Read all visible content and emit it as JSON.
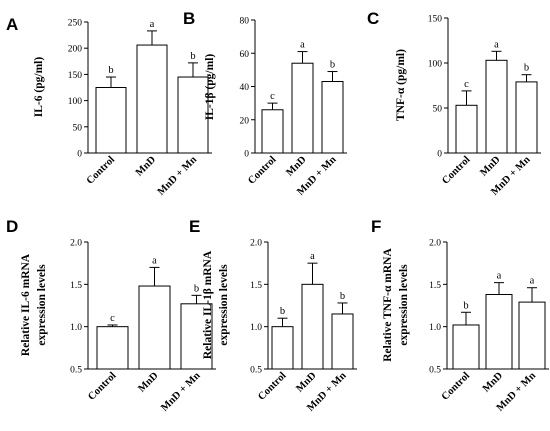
{
  "chart_data": [
    {
      "type": "bar",
      "panel": "A",
      "ylabel": "IL-6 (pg/ml)",
      "categories": [
        "Control",
        "MnD",
        "MnD + Mn"
      ],
      "values": [
        125,
        206,
        145
      ],
      "errors": [
        20,
        27,
        27
      ],
      "significance": [
        "b",
        "a",
        "b"
      ],
      "ylim": [
        0,
        250
      ],
      "yticks": [
        0,
        50,
        100,
        150,
        200,
        250
      ],
      "ytick_labels": [
        "0",
        "50",
        "100",
        "150",
        "200",
        "250"
      ],
      "grid": false,
      "bar_fill": "#ffffff",
      "bar_stroke": "#000000"
    },
    {
      "type": "bar",
      "panel": "B",
      "ylabel": "IL-1β (pg/ml)",
      "categories": [
        "Control",
        "MnD",
        "MnD + Mn"
      ],
      "values": [
        26,
        54,
        43
      ],
      "errors": [
        4,
        7,
        6
      ],
      "significance": [
        "c",
        "a",
        "b"
      ],
      "ylim": [
        0,
        80
      ],
      "yticks": [
        0,
        20,
        40,
        60,
        80
      ],
      "ytick_labels": [
        "0",
        "20",
        "40",
        "60",
        "80"
      ],
      "grid": false,
      "bar_fill": "#ffffff",
      "bar_stroke": "#000000"
    },
    {
      "type": "bar",
      "panel": "C",
      "ylabel": "TNF-α (pg/ml)",
      "categories": [
        "Control",
        "MnD",
        "MnD + Mn"
      ],
      "values": [
        53,
        103,
        79
      ],
      "errors": [
        16,
        10,
        8
      ],
      "significance": [
        "c",
        "a",
        "b"
      ],
      "ylim": [
        0,
        150
      ],
      "yticks": [
        0,
        50,
        100,
        150
      ],
      "ytick_labels": [
        "0",
        "50",
        "100",
        "150"
      ],
      "grid": false,
      "bar_fill": "#ffffff",
      "bar_stroke": "#000000"
    },
    {
      "type": "bar",
      "panel": "D",
      "ylabel": "Relative IL-6 mRNA",
      "ylabel2": "expression levels",
      "categories": [
        "Control",
        "MnD",
        "MnD + Mn"
      ],
      "values": [
        1.0,
        1.48,
        1.27
      ],
      "errors": [
        0.02,
        0.22,
        0.1
      ],
      "significance": [
        "c",
        "a",
        "b"
      ],
      "ylim": [
        0.5,
        2.0
      ],
      "yticks": [
        0.5,
        1.0,
        1.5,
        2.0
      ],
      "ytick_labels": [
        "0.5",
        "1.0",
        "1.5",
        "2.0"
      ],
      "grid": false,
      "bar_fill": "#ffffff",
      "bar_stroke": "#000000"
    },
    {
      "type": "bar",
      "panel": "E",
      "ylabel": "Relative IL-1β mRNA",
      "ylabel2": "expression levels",
      "categories": [
        "Control",
        "MnD",
        "MnD + Mn"
      ],
      "values": [
        1.0,
        1.5,
        1.15
      ],
      "errors": [
        0.1,
        0.25,
        0.13
      ],
      "significance": [
        "b",
        "a",
        "b"
      ],
      "ylim": [
        0.5,
        2.0
      ],
      "yticks": [
        0.5,
        1.0,
        1.5,
        2.0
      ],
      "ytick_labels": [
        "0.5",
        "1.0",
        "1.5",
        "2.0"
      ],
      "grid": false,
      "bar_fill": "#ffffff",
      "bar_stroke": "#000000"
    },
    {
      "type": "bar",
      "panel": "F",
      "ylabel": "Relative TNF-α mRNA",
      "ylabel2": "expression levels",
      "categories": [
        "Control",
        "MnD",
        "MnD + Mn"
      ],
      "values": [
        1.02,
        1.38,
        1.29
      ],
      "errors": [
        0.15,
        0.14,
        0.17
      ],
      "significance": [
        "b",
        "a",
        "a"
      ],
      "ylim": [
        0.5,
        2.0
      ],
      "yticks": [
        0.5,
        1.0,
        1.5,
        2.0
      ],
      "ytick_labels": [
        "0.5",
        "1.0",
        "1.5",
        "2.0"
      ],
      "grid": false,
      "bar_fill": "#ffffff",
      "bar_stroke": "#000000"
    }
  ]
}
